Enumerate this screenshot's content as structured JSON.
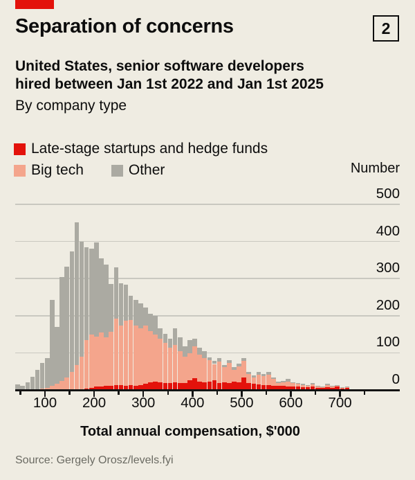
{
  "header": {
    "title": "Separation of concerns",
    "index_label": "2",
    "subtitle_line1": "United States, senior software developers",
    "subtitle_line2": "hired between Jan 1st 2022 and Jan 1st 2025",
    "byline": "By company type"
  },
  "legend": {
    "items": [
      {
        "label": "Late-stage startups and hedge funds",
        "color": "#E3120B"
      },
      {
        "label": "Big tech",
        "color": "#F4A58C"
      },
      {
        "label": "Other",
        "color": "#ABAAA2"
      }
    ]
  },
  "footer": {
    "source": "Source: Gergely Orosz/levels.fyi"
  },
  "chart_data": {
    "type": "bar",
    "subtype": "layered-histogram",
    "title": "Separation of concerns",
    "xlabel": "Total annual compensation, $'000",
    "ylabel": "Number",
    "grid": "horizontal",
    "legend_position": "top-left",
    "ylim": [
      0,
      500
    ],
    "y_ticks": [
      0,
      100,
      200,
      300,
      400,
      500
    ],
    "x_ticks_major": [
      100,
      200,
      300,
      400,
      500,
      600,
      700
    ],
    "x_ticks_minor": [
      50,
      150,
      250,
      350,
      450,
      550,
      650,
      750
    ],
    "bin_width": 10,
    "bin_start": 40,
    "bin_left_edges": [
      40,
      50,
      60,
      70,
      80,
      90,
      100,
      110,
      120,
      130,
      140,
      150,
      160,
      170,
      180,
      190,
      200,
      210,
      220,
      230,
      240,
      250,
      260,
      270,
      280,
      290,
      300,
      310,
      320,
      330,
      340,
      350,
      360,
      370,
      380,
      390,
      400,
      410,
      420,
      430,
      440,
      450,
      460,
      470,
      480,
      490,
      500,
      510,
      520,
      530,
      540,
      550,
      560,
      570,
      580,
      590,
      600,
      610,
      620,
      630,
      640,
      650,
      660,
      670,
      680,
      690,
      700,
      710
    ],
    "series": [
      {
        "name": "Other",
        "color": "#ABAAA2",
        "values": [
          15,
          11,
          20,
          35,
          55,
          72,
          85,
          242,
          170,
          305,
          332,
          373,
          452,
          399,
          385,
          380,
          398,
          354,
          338,
          285,
          330,
          287,
          283,
          254,
          242,
          233,
          223,
          205,
          199,
          167,
          152,
          139,
          166,
          142,
          118,
          134,
          139,
          114,
          104,
          88,
          78,
          86,
          68,
          80,
          62,
          71,
          86,
          49,
          40,
          49,
          43,
          49,
          34,
          22,
          24,
          30,
          21,
          19,
          16,
          14,
          18,
          12,
          10,
          16,
          11,
          14,
          8,
          10
        ]
      },
      {
        "name": "Big tech",
        "color": "#F4A58C",
        "values": [
          0,
          0,
          0,
          0,
          2,
          4,
          6,
          12,
          17,
          24,
          34,
          49,
          68,
          90,
          135,
          150,
          143,
          154,
          142,
          156,
          193,
          173,
          187,
          188,
          173,
          167,
          174,
          158,
          150,
          139,
          127,
          114,
          121,
          105,
          90,
          99,
          118,
          95,
          86,
          80,
          70,
          77,
          61,
          73,
          55,
          64,
          78,
          43,
          34,
          42,
          37,
          42,
          29,
          19,
          20,
          23,
          18,
          16,
          13,
          11,
          15,
          10,
          8,
          13,
          9,
          12,
          6,
          8
        ]
      },
      {
        "name": "Late-stage startups and hedge funds",
        "color": "#E3120B",
        "values": [
          0,
          0,
          0,
          0,
          0,
          0,
          0,
          0,
          0,
          0,
          0,
          0,
          0,
          0,
          3,
          6,
          9,
          10,
          11,
          12,
          14,
          13,
          12,
          14,
          12,
          13,
          17,
          21,
          23,
          21,
          18,
          18,
          21,
          18,
          18,
          27,
          31,
          22,
          21,
          23,
          26,
          18,
          20,
          18,
          22,
          20,
          33,
          18,
          16,
          15,
          14,
          13,
          12,
          11,
          11,
          10,
          10,
          9,
          8,
          7,
          9,
          6,
          5,
          8,
          6,
          11,
          4,
          5
        ]
      }
    ]
  }
}
